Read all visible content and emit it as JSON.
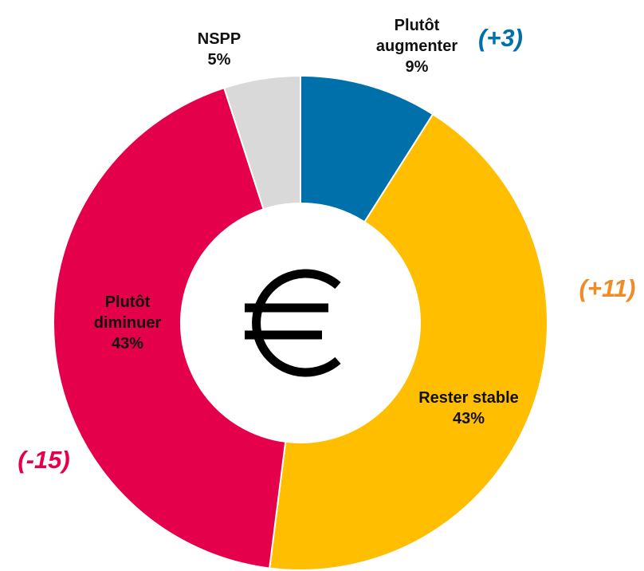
{
  "chart_data": {
    "type": "donut",
    "categories": [
      "Plutôt augmenter",
      "Rester stable",
      "Plutôt diminuer",
      "NSPP"
    ],
    "values": [
      9,
      43,
      43,
      5
    ],
    "value_labels": [
      "9%",
      "43%",
      "43%",
      "5%"
    ],
    "colors": [
      "#0070aa",
      "#ffbe00",
      "#e5004b",
      "#d9d9d9"
    ],
    "change_labels": [
      "(+3)",
      "(+11)",
      "(-15)",
      null
    ],
    "change_colors": [
      "#0070aa",
      "#f08c28",
      "#e5004b",
      null
    ]
  }
}
